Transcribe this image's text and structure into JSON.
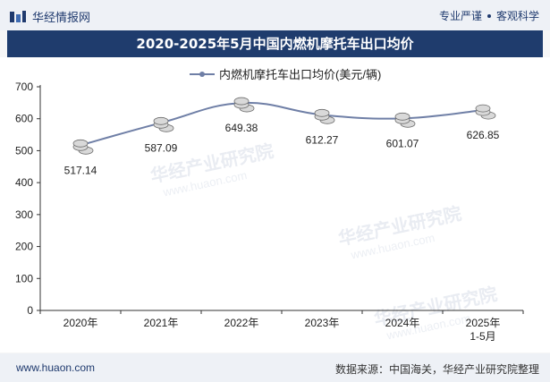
{
  "header": {
    "brand": "华经情报网",
    "tag1": "专业严谨",
    "tag2": "客观科学"
  },
  "title": "2020-2025年5月中国内燃机摩托车出口均价",
  "footer": {
    "website": "www.huaon.com",
    "source": "数据来源：中国海关，华经产业研究院整理"
  },
  "watermark": {
    "text": "华经产业研究院",
    "url": "www.huaon.com"
  },
  "colors": {
    "line": "#6f7fa6",
    "title_bg": "#1f3c6d",
    "axis": "#333333"
  },
  "chart_data": {
    "type": "line",
    "title": "2020-2025年5月中国内燃机摩托车出口均价",
    "categories": [
      "2020年",
      "2021年",
      "2022年",
      "2023年",
      "2024年",
      "2025年\n1-5月"
    ],
    "series": [
      {
        "name": "内燃机摩托车出口均价(美元/辆)",
        "values": [
          517.14,
          587.09,
          649.38,
          612.27,
          601.07,
          626.85
        ]
      }
    ],
    "ylim": [
      0,
      700
    ],
    "yticks": [
      0,
      100,
      200,
      300,
      400,
      500,
      600,
      700
    ],
    "xlabel": "",
    "ylabel": "",
    "legend": "top-center",
    "data_labels": [
      "517.14",
      "587.09",
      "649.38",
      "612.27",
      "601.07",
      "626.85"
    ],
    "grid": false
  }
}
